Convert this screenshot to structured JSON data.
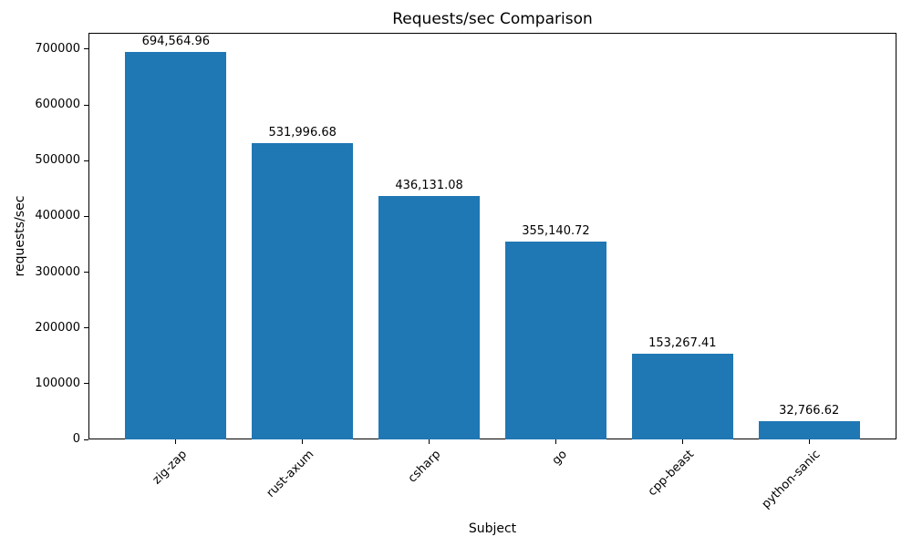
{
  "title": "Requests/sec Comparison",
  "chart_data": {
    "type": "bar",
    "title": "Requests/sec Comparison",
    "xlabel": "Subject",
    "ylabel": "requests/sec",
    "categories": [
      "zig-zap",
      "rust-axum",
      "csharp",
      "go",
      "cpp-beast",
      "python-sanic"
    ],
    "values": [
      694564.96,
      531996.68,
      436131.08,
      355140.72,
      153267.41,
      32766.62
    ],
    "value_labels": [
      "694,564.96",
      "531,996.68",
      "436,131.08",
      "355,140.72",
      "153,267.41",
      "32,766.62"
    ],
    "ylim": [
      0,
      729293
    ],
    "yticks": [
      0,
      100000,
      200000,
      300000,
      400000,
      500000,
      600000,
      700000
    ],
    "bar_color": "#1f77b4",
    "axis_color": "#000000",
    "background_color": "#ffffff",
    "grid": false,
    "x_tick_rotation": 45,
    "legend": null
  }
}
